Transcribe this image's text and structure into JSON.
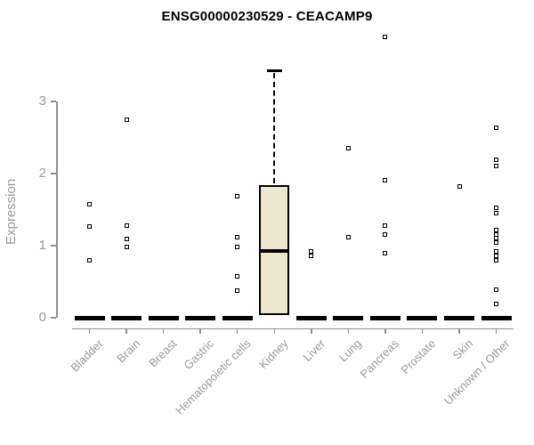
{
  "chart_data": {
    "type": "box",
    "title": "ENSG00000230529 - CEACAMP9",
    "ylabel": "Expression",
    "xlabel": "",
    "yticks": [
      0,
      1,
      2,
      3
    ],
    "ylim": [
      0,
      4.05
    ],
    "grid": false,
    "legend": "none",
    "colors": {
      "box_fill": "#ece7cd",
      "box_border": "#000000",
      "axis": "#8f8f8f",
      "tick_label": "#9a9a9a",
      "title": "#000000",
      "point": "#000000",
      "background": "#ffffff"
    },
    "categories": [
      "Bladder",
      "Brain",
      "Breast",
      "Gastric",
      "Hematopoietic cells",
      "Kidney",
      "Liver",
      "Lung",
      "Pancreas",
      "Prostate",
      "Skin",
      "Unknown / Other"
    ],
    "boxes": [
      {
        "category": "Bladder",
        "q1": 0,
        "median": 0,
        "q3": 0,
        "whisker_low": 0,
        "whisker_high": 0,
        "outliers": [
          1.57,
          1.27,
          0.8
        ]
      },
      {
        "category": "Brain",
        "q1": 0,
        "median": 0,
        "q3": 0,
        "whisker_low": 0,
        "whisker_high": 0,
        "outliers": [
          2.75,
          1.28,
          1.09,
          0.98
        ]
      },
      {
        "category": "Breast",
        "q1": 0,
        "median": 0,
        "q3": 0,
        "whisker_low": 0,
        "whisker_high": 0,
        "outliers": []
      },
      {
        "category": "Gastric",
        "q1": 0,
        "median": 0,
        "q3": 0,
        "whisker_low": 0,
        "whisker_high": 0,
        "outliers": []
      },
      {
        "category": "Hematopoietic cells",
        "q1": 0,
        "median": 0,
        "q3": 0,
        "whisker_low": 0,
        "whisker_high": 0,
        "outliers": [
          1.69,
          1.12,
          0.98,
          0.57,
          0.38
        ]
      },
      {
        "category": "Kidney",
        "q1": 0.04,
        "median": 0.93,
        "q3": 1.84,
        "whisker_low": 0.04,
        "whisker_high": 3.42,
        "outliers": []
      },
      {
        "category": "Liver",
        "q1": 0,
        "median": 0,
        "q3": 0,
        "whisker_low": 0,
        "whisker_high": 0,
        "outliers": [
          0.92,
          0.86
        ]
      },
      {
        "category": "Lung",
        "q1": 0,
        "median": 0,
        "q3": 0,
        "whisker_low": 0,
        "whisker_high": 0,
        "outliers": [
          2.35,
          1.12
        ]
      },
      {
        "category": "Pancreas",
        "q1": 0,
        "median": 0,
        "q3": 0,
        "whisker_low": 0,
        "whisker_high": 0,
        "outliers": [
          3.89,
          1.91,
          1.28,
          1.16,
          0.9
        ]
      },
      {
        "category": "Prostate",
        "q1": 0,
        "median": 0,
        "q3": 0,
        "whisker_low": 0,
        "whisker_high": 0,
        "outliers": []
      },
      {
        "category": "Skin",
        "q1": 0,
        "median": 0,
        "q3": 0,
        "whisker_low": 0,
        "whisker_high": 0,
        "outliers": [
          1.82
        ]
      },
      {
        "category": "Unknown / Other",
        "q1": 0,
        "median": 0,
        "q3": 0,
        "whisker_low": 0,
        "whisker_high": 0,
        "outliers": [
          2.64,
          2.19,
          2.1,
          1.52,
          1.45,
          1.22,
          1.16,
          1.1,
          1.04,
          0.92,
          0.86,
          0.8,
          0.39,
          0.19
        ]
      }
    ]
  }
}
